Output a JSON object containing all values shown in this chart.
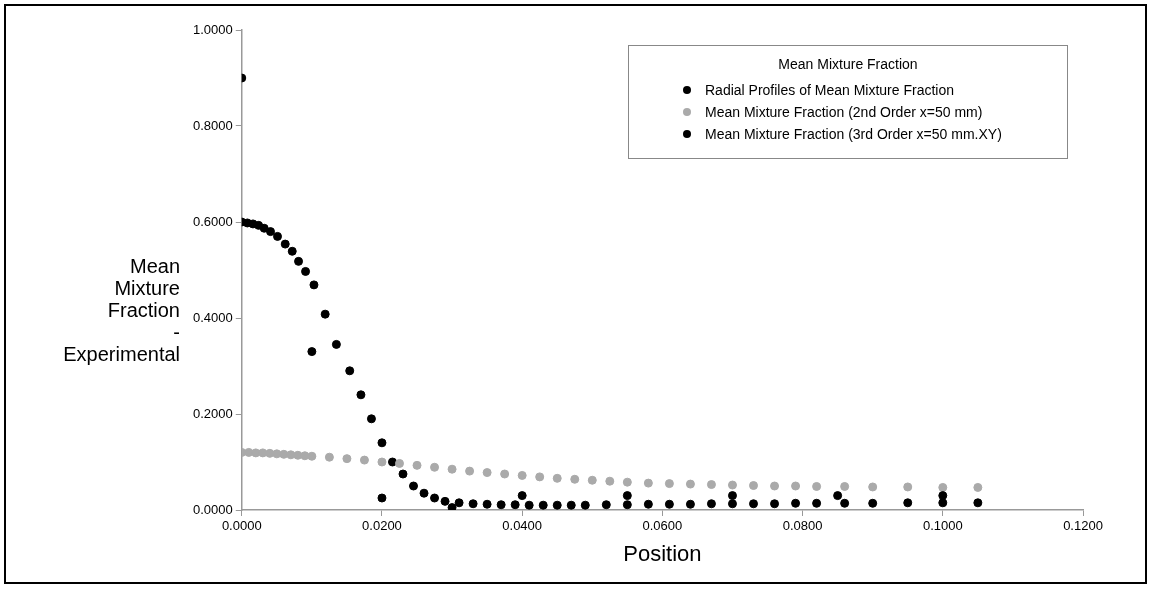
{
  "chart_data": {
    "type": "scatter",
    "xlabel": "Position",
    "ylabel": "Mean Mixture Fraction - Experimental",
    "legend_title": "Mean Mixture Fraction",
    "legend": "top right",
    "marker": "circle",
    "grid": false,
    "xlim": [
      0,
      0.12
    ],
    "xticks": [
      {
        "value": 0,
        "label": "0.0000"
      },
      {
        "value": 0.02,
        "label": "0.0200"
      },
      {
        "value": 0.04,
        "label": "0.0400"
      },
      {
        "value": 0.06,
        "label": "0.0600"
      },
      {
        "value": 0.08,
        "label": "0.0800"
      },
      {
        "value": 0.1,
        "label": "0.1000"
      },
      {
        "value": 0.12,
        "label": "0.1200"
      }
    ],
    "ylim": [
      0,
      1
    ],
    "yticks": [
      {
        "value": 0,
        "label": "0.0000"
      },
      {
        "value": 0.2,
        "label": "0.2000"
      },
      {
        "value": 0.4,
        "label": "0.4000"
      },
      {
        "value": 0.6,
        "label": "0.6000"
      },
      {
        "value": 0.8,
        "label": "0.8000"
      },
      {
        "value": 1,
        "label": "1.0000"
      }
    ],
    "series": [
      {
        "name": "Radial Profiles of Mean Mixture Fraction",
        "color": "#000000",
        "x": [
          0,
          0.01,
          0.02,
          0.03,
          0.04,
          0.055,
          0.07,
          0.085,
          0.1
        ],
        "values": [
          0.9,
          0.33,
          0.025,
          0.005,
          0.03,
          0.03,
          0.03,
          0.03,
          0.03
        ]
      },
      {
        "name": "Mean Mixture Fraction (2nd Order x=50 mm)",
        "color": "#aaaaaa",
        "x": [
          0,
          0.001,
          0.002,
          0.003,
          0.004,
          0.005,
          0.006,
          0.007,
          0.008,
          0.009,
          0.01,
          0.0125,
          0.015,
          0.0175,
          0.02,
          0.0225,
          0.025,
          0.0275,
          0.03,
          0.0325,
          0.035,
          0.0375,
          0.04,
          0.0425,
          0.045,
          0.0475,
          0.05,
          0.0525,
          0.055,
          0.058,
          0.061,
          0.064,
          0.067,
          0.07,
          0.073,
          0.076,
          0.079,
          0.082,
          0.086,
          0.09,
          0.095,
          0.1,
          0.105
        ],
        "values": [
          0.12,
          0.12,
          0.119,
          0.119,
          0.118,
          0.117,
          0.116,
          0.115,
          0.114,
          0.113,
          0.112,
          0.11,
          0.107,
          0.104,
          0.1,
          0.097,
          0.093,
          0.089,
          0.085,
          0.081,
          0.078,
          0.075,
          0.072,
          0.069,
          0.066,
          0.064,
          0.062,
          0.06,
          0.058,
          0.056,
          0.055,
          0.054,
          0.053,
          0.052,
          0.051,
          0.05,
          0.05,
          0.049,
          0.049,
          0.048,
          0.048,
          0.047,
          0.047
        ]
      },
      {
        "name": "Mean Mixture Fraction (3rd Order x=50 mm.XY)",
        "color": "#000000",
        "x": [
          0,
          0.0008,
          0.0016,
          0.0024,
          0.0032,
          0.0041,
          0.0051,
          0.0062,
          0.0072,
          0.0081,
          0.0091,
          0.0103,
          0.0119,
          0.0135,
          0.0154,
          0.017,
          0.0185,
          0.02,
          0.0215,
          0.023,
          0.0245,
          0.026,
          0.0275,
          0.029,
          0.031,
          0.033,
          0.035,
          0.037,
          0.039,
          0.041,
          0.043,
          0.045,
          0.047,
          0.049,
          0.052,
          0.055,
          0.058,
          0.061,
          0.064,
          0.067,
          0.07,
          0.073,
          0.076,
          0.079,
          0.082,
          0.086,
          0.09,
          0.095,
          0.1,
          0.105
        ],
        "values": [
          0.6,
          0.598,
          0.596,
          0.593,
          0.587,
          0.58,
          0.57,
          0.554,
          0.539,
          0.518,
          0.497,
          0.469,
          0.408,
          0.345,
          0.29,
          0.24,
          0.19,
          0.14,
          0.1,
          0.075,
          0.05,
          0.035,
          0.025,
          0.018,
          0.015,
          0.013,
          0.012,
          0.011,
          0.011,
          0.01,
          0.01,
          0.01,
          0.01,
          0.01,
          0.011,
          0.011,
          0.012,
          0.012,
          0.012,
          0.013,
          0.013,
          0.013,
          0.013,
          0.014,
          0.014,
          0.014,
          0.014,
          0.015,
          0.015,
          0.015
        ]
      }
    ]
  }
}
